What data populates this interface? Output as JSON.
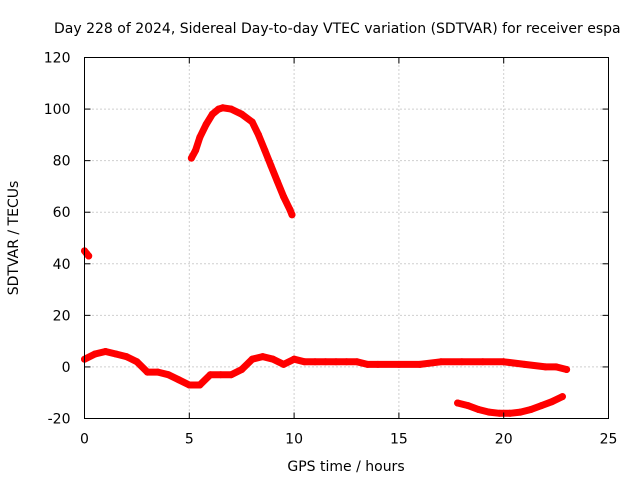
{
  "chart_data": {
    "type": "scatter",
    "title": "Day 228 of 2024, Sidereal Day-to-day VTEC variation (SDTVAR) for receiver espa",
    "xlabel": "GPS time / hours",
    "ylabel": "SDTVAR / TECUs",
    "xlim": [
      0,
      25
    ],
    "ylim": [
      -20,
      120
    ],
    "xticks": [
      0,
      5,
      10,
      15,
      20,
      25
    ],
    "yticks": [
      -20,
      0,
      20,
      40,
      60,
      80,
      100,
      120
    ],
    "grid": true,
    "series": [
      {
        "name": "SDTVAR",
        "color": "#ff0000",
        "segments": [
          {
            "x": [
              0.0,
              0.1,
              0.2
            ],
            "y": [
              45,
              44,
              43
            ]
          },
          {
            "x": [
              5.1,
              5.3,
              5.5,
              5.8,
              6.1,
              6.4,
              6.6,
              7.0,
              7.5,
              8.0,
              8.3,
              8.6,
              8.9,
              9.2,
              9.5,
              9.8,
              9.9
            ],
            "y": [
              81,
              84,
              89,
              94,
              98,
              100,
              100.5,
              100,
              98,
              95,
              90,
              84,
              78,
              72,
              66,
              61,
              59
            ]
          },
          {
            "x": [
              0.0,
              0.5,
              1.0,
              1.5,
              2.0,
              2.5,
              3.0,
              3.5,
              4.0,
              4.5,
              5.0,
              5.5,
              6.0,
              6.5,
              7.0,
              7.5,
              8.0,
              8.5,
              9.0,
              9.5,
              10.0
            ],
            "y": [
              3,
              5,
              6,
              5,
              4,
              2,
              -2,
              -2,
              -3,
              -5,
              -7,
              -7,
              -3,
              -3,
              -3,
              -1,
              3,
              4,
              3,
              1,
              3
            ]
          },
          {
            "x": [
              10.0,
              10.5,
              11.0,
              11.5,
              12.0,
              12.5,
              13.0,
              13.5,
              14.0,
              15.0,
              16.0,
              17.0,
              18.0,
              19.0,
              20.0,
              21.0,
              22.0,
              22.5,
              23.0
            ],
            "y": [
              3,
              2,
              2,
              2,
              2,
              2,
              2,
              1,
              1,
              1,
              1,
              2,
              2,
              2,
              2,
              1,
              0,
              0,
              -1
            ]
          },
          {
            "x": [
              17.8,
              18.3,
              18.8,
              19.3,
              19.8,
              20.3,
              20.8,
              21.3,
              21.8,
              22.3,
              22.8
            ],
            "y": [
              -14,
              -15,
              -16.5,
              -17.5,
              -18,
              -18,
              -17.5,
              -16.5,
              -15,
              -13.5,
              -11.5
            ]
          }
        ]
      }
    ]
  }
}
